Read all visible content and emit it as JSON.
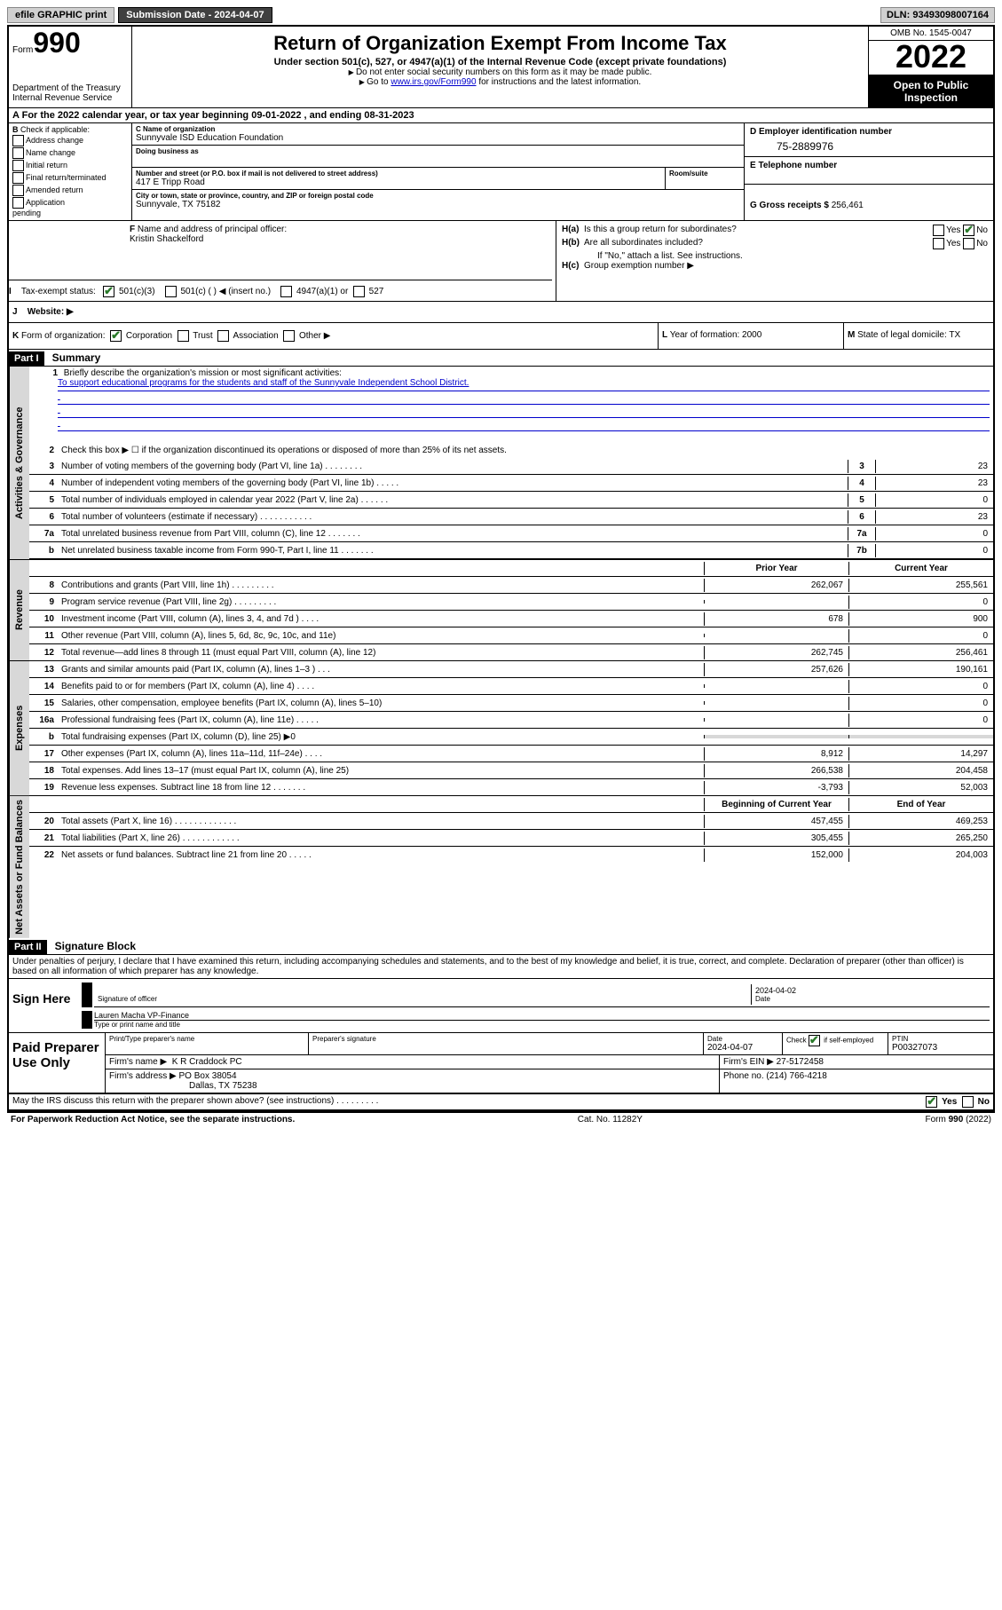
{
  "topbar": {
    "efile": "efile GRAPHIC print",
    "submission": "Submission Date - 2024-04-07",
    "dln": "DLN: 93493098007164"
  },
  "header": {
    "form_label": "Form",
    "form_number": "990",
    "dept": "Department of the Treasury",
    "irs": "Internal Revenue Service",
    "title": "Return of Organization Exempt From Income Tax",
    "subtitle": "Under section 501(c), 527, or 4947(a)(1) of the Internal Revenue Code (except private foundations)",
    "note1": "Do not enter social security numbers on this form as it may be made public.",
    "note2_pre": "Go to ",
    "note2_link": "www.irs.gov/Form990",
    "note2_post": " for instructions and the latest information.",
    "omb": "OMB No. 1545-0047",
    "year": "2022",
    "inspection": "Open to Public Inspection"
  },
  "period": {
    "text": "For the 2022 calendar year, or tax year beginning 09-01-2022     , and ending 08-31-2023"
  },
  "checkB": {
    "label": "Check if applicable:",
    "items": [
      "Address change",
      "Name change",
      "Initial return",
      "Final return/terminated",
      "Amended return",
      "Application\n    pending"
    ]
  },
  "entity": {
    "c_label": "C Name of organization",
    "c_name": "Sunnyvale ISD Education Foundation",
    "dba_label": "Doing business as",
    "street_label": "Number and street (or P.O. box if mail is not delivered to street address)",
    "street": "417 E Tripp Road",
    "room_label": "Room/suite",
    "city_label": "City or town, state or province, country, and ZIP or foreign postal code",
    "city": "Sunnyvale, TX   75182"
  },
  "ein": {
    "d_label": "D Employer identification number",
    "d_value": "75-2889976",
    "e_label": "E Telephone number",
    "g_label": "G Gross receipts $",
    "g_value": "256,461"
  },
  "officer": {
    "f_label": "Name and address of principal officer:",
    "f_name": "Kristin Shackelford"
  },
  "group": {
    "ha": "Is this a group return for subordinates?",
    "hb": "Are all subordinates included?",
    "hb_note": "If \"No,\" attach a list. See instructions.",
    "hc": "Group exemption number ▶",
    "yes": "Yes",
    "no": "No"
  },
  "status": {
    "i_label": "Tax-exempt status:",
    "opts": [
      "501(c)(3)",
      "501(c) (  ) ◀ (insert no.)",
      "4947(a)(1) or",
      "527"
    ]
  },
  "website": {
    "j_label": "Website: ▶"
  },
  "formorg": {
    "k_label": "Form of organization:",
    "opts": [
      "Corporation",
      "Trust",
      "Association",
      "Other ▶"
    ],
    "l_label": "Year of formation: 2000",
    "m_label": "State of legal domicile: TX"
  },
  "part1": {
    "header": "Part I",
    "title": "Summary"
  },
  "mission": {
    "label": "Briefly describe the organization's mission or most significant activities:",
    "text": "To support educational programs for the students and staff of the Sunnyvale Independent School District."
  },
  "gov_lines": [
    {
      "n": "2",
      "t": "Check this box ▶ ☐  if the organization discontinued its operations or disposed of more than 25% of its net assets.",
      "box": "",
      "v": ""
    },
    {
      "n": "3",
      "t": "Number of voting members of the governing body (Part VI, line 1a)   .     .     .     .     .     .     .     .",
      "box": "3",
      "v": "23"
    },
    {
      "n": "4",
      "t": "Number of independent voting members of the governing body (Part VI, line 1b)  .     .     .     .     .",
      "box": "4",
      "v": "23"
    },
    {
      "n": "5",
      "t": "Total number of individuals employed in calendar year 2022 (Part V, line 2a)  .     .     .     .     .     .",
      "box": "5",
      "v": "0"
    },
    {
      "n": "6",
      "t": "Total number of volunteers (estimate if necessary)   .     .     .     .     .     .     .     .     .     .     .",
      "box": "6",
      "v": "23"
    },
    {
      "n": "7a",
      "t": "Total unrelated business revenue from Part VIII, column (C), line 12   .     .     .     .     .     .     .",
      "box": "7a",
      "v": "0"
    },
    {
      "n": "b",
      "t": "Net unrelated business taxable income from Form 990-T, Part I, line 11   .     .     .     .     .     .     .",
      "box": "7b",
      "v": "0"
    }
  ],
  "col_headers": {
    "prior": "Prior Year",
    "current": "Current Year",
    "begin": "Beginning of Current Year",
    "end": "End of Year"
  },
  "rev_lines": [
    {
      "n": "8",
      "t": "Contributions and grants (Part VIII, line 1h)   .     .     .     .     .     .     .     .     .",
      "p": "262,067",
      "c": "255,561"
    },
    {
      "n": "9",
      "t": "Program service revenue (Part VIII, line 2g)  .     .     .     .     .     .     .     .     .",
      "p": "",
      "c": "0"
    },
    {
      "n": "10",
      "t": "Investment income (Part VIII, column (A), lines 3, 4, and 7d )   .     .     .     .",
      "p": "678",
      "c": "900"
    },
    {
      "n": "11",
      "t": "Other revenue (Part VIII, column (A), lines 5, 6d, 8c, 9c, 10c, and 11e)",
      "p": "",
      "c": "0"
    },
    {
      "n": "12",
      "t": "Total revenue—add lines 8 through 11 (must equal Part VIII, column (A), line 12)",
      "p": "262,745",
      "c": "256,461"
    }
  ],
  "exp_lines": [
    {
      "n": "13",
      "t": "Grants and similar amounts paid (Part IX, column (A), lines 1–3 )   .     .     .",
      "p": "257,626",
      "c": "190,161"
    },
    {
      "n": "14",
      "t": "Benefits paid to or for members (Part IX, column (A), line 4)  .     .     .     .",
      "p": "",
      "c": "0"
    },
    {
      "n": "15",
      "t": "Salaries, other compensation, employee benefits (Part IX, column (A), lines 5–10)",
      "p": "",
      "c": "0"
    },
    {
      "n": "16a",
      "t": "Professional fundraising fees (Part IX, column (A), line 11e)   .     .     .     .     .",
      "p": "",
      "c": "0"
    },
    {
      "n": "b",
      "t": "Total fundraising expenses (Part IX, column (D), line 25) ▶0",
      "p": "shaded",
      "c": "shaded"
    },
    {
      "n": "17",
      "t": "Other expenses (Part IX, column (A), lines 11a–11d, 11f–24e)   .     .     .     .",
      "p": "8,912",
      "c": "14,297"
    },
    {
      "n": "18",
      "t": "Total expenses. Add lines 13–17 (must equal Part IX, column (A), line 25)",
      "p": "266,538",
      "c": "204,458"
    },
    {
      "n": "19",
      "t": "Revenue less expenses. Subtract line 18 from line 12  .     .     .     .     .     .     .",
      "p": "-3,793",
      "c": "52,003"
    }
  ],
  "net_lines": [
    {
      "n": "20",
      "t": "Total assets (Part X, line 16)  .     .     .     .     .     .     .     .     .     .     .     .     .",
      "p": "457,455",
      "c": "469,253"
    },
    {
      "n": "21",
      "t": "Total liabilities (Part X, line 26)   .     .     .     .     .     .     .     .     .     .     .     .",
      "p": "305,455",
      "c": "265,250"
    },
    {
      "n": "22",
      "t": "Net assets or fund balances. Subtract line 21 from line 20   .     .     .     .     .",
      "p": "152,000",
      "c": "204,003"
    }
  ],
  "part2": {
    "header": "Part II",
    "title": "Signature Block"
  },
  "sig": {
    "penalty": "Under penalties of perjury, I declare that I have examined this return, including accompanying schedules and statements, and to the best of my knowledge and belief, it is true, correct, and complete. Declaration of preparer (other than officer) is based on all information of which preparer has any knowledge.",
    "sign_here": "Sign Here",
    "sig_label": "Signature of officer",
    "date_label": "Date",
    "date_val": "2024-04-02",
    "name": "Lauren Macha  VP-Finance",
    "name_label": "Type or print name and title"
  },
  "prep": {
    "label": "Paid Preparer Use Only",
    "h1": "Print/Type preparer's name",
    "h2": "Preparer's signature",
    "h3": "Date",
    "h3v": "2024-04-07",
    "h4": "Check ✔ if self-employed",
    "h5": "PTIN",
    "h5v": "P00327073",
    "firm_name_label": "Firm's name    ▶",
    "firm_name": "K R Craddock PC",
    "firm_ein_label": "Firm's EIN ▶",
    "firm_ein": "27-5172458",
    "firm_addr_label": "Firm's address ▶",
    "firm_addr1": "PO Box 38054",
    "firm_addr2": "Dallas, TX   75238",
    "phone_label": "Phone no.",
    "phone": "(214) 766-4218"
  },
  "footer": {
    "discuss": "May the IRS discuss this return with the preparer shown above? (see instructions)    .     .     .     .     .     .     .     .     .",
    "yes": "Yes",
    "no": "No",
    "pra": "For Paperwork Reduction Act Notice, see the separate instructions.",
    "cat": "Cat. No. 11282Y",
    "form": "Form 990 (2022)"
  },
  "vtabs": {
    "gov": "Activities & Governance",
    "rev": "Revenue",
    "exp": "Expenses",
    "net": "Net Assets or Fund Balances"
  }
}
